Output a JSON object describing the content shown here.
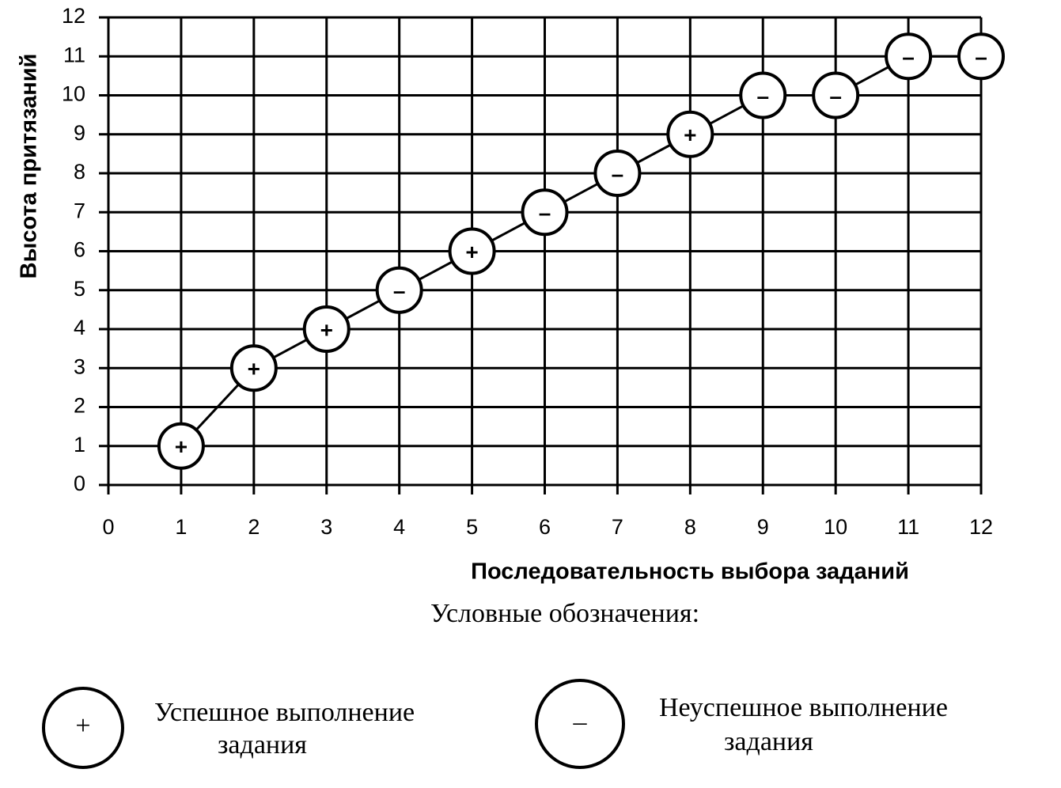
{
  "chart_data": {
    "type": "line",
    "x_label": "Последовательность выбора заданий",
    "y_label": "Высота притязаний",
    "x": [
      1,
      2,
      3,
      4,
      5,
      6,
      7,
      8,
      9,
      10,
      11,
      12
    ],
    "series": [
      {
        "name": "Высота притязаний",
        "color": "#000000",
        "values": [
          1,
          3,
          4,
          5,
          6,
          7,
          8,
          9,
          10,
          10,
          11,
          11
        ],
        "outcomes": [
          "+",
          "+",
          "+",
          "–",
          "+",
          "–",
          "–",
          "+",
          "–",
          "–",
          "–",
          "–"
        ]
      }
    ],
    "xlim": [
      0,
      12
    ],
    "xticks": [
      0,
      1,
      2,
      3,
      4,
      5,
      6,
      7,
      8,
      9,
      10,
      11,
      12
    ],
    "ylim": [
      0,
      12
    ],
    "yticks": [
      0,
      1,
      2,
      3,
      4,
      5,
      6,
      7,
      8,
      9,
      10,
      11,
      12
    ],
    "grid": true,
    "legend": {
      "title": "Условные обозначения:",
      "items": [
        {
          "symbol": "+",
          "lines": [
            "Успешное выполнение",
            "задания"
          ]
        },
        {
          "symbol": "–",
          "lines": [
            "Неуспешное выполнение",
            "задания"
          ]
        }
      ]
    }
  }
}
